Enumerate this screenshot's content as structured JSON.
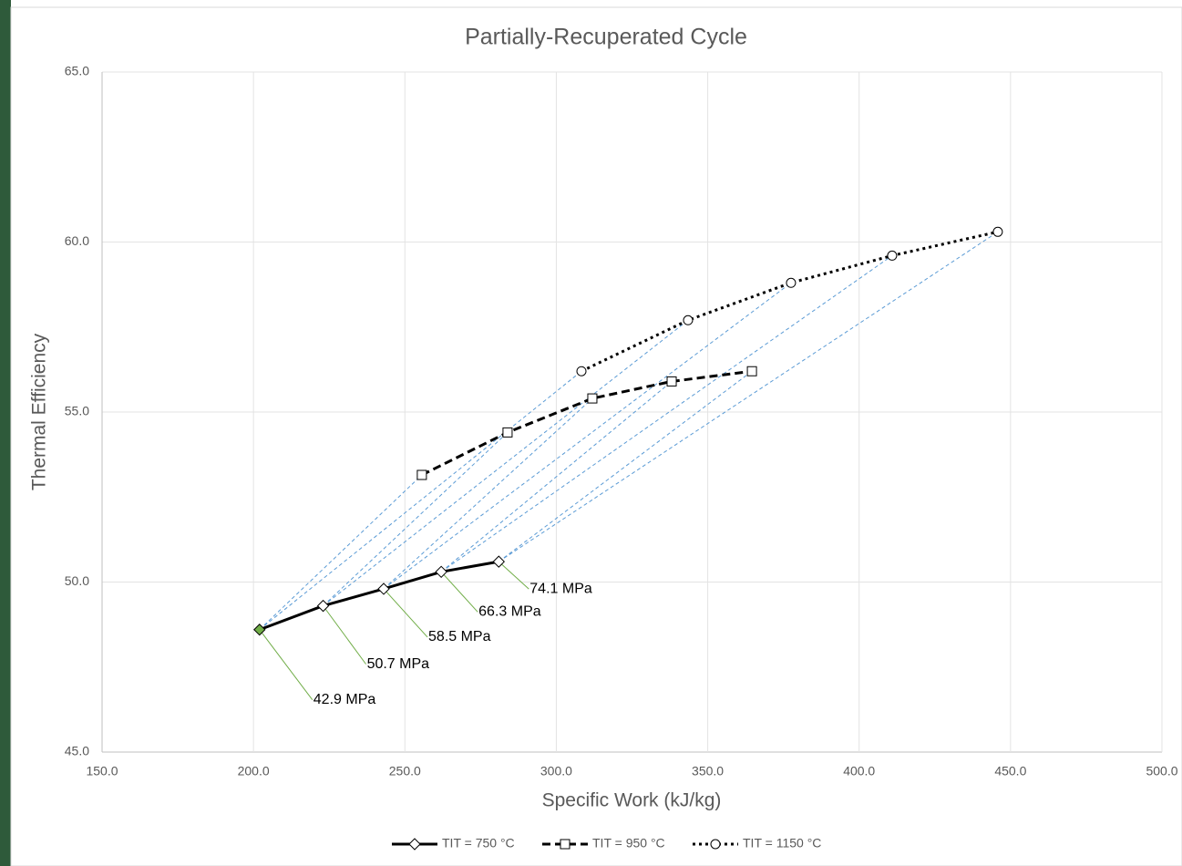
{
  "chart_data": {
    "type": "line",
    "title": "Partially-Recuperated Cycle",
    "x_label": "Specific Work (kJ/kg)",
    "y_label": "Thermal Efficiency",
    "xlim": [
      150,
      500
    ],
    "ylim": [
      45,
      65
    ],
    "xticks": [
      {
        "value": 150,
        "label": "150.0"
      },
      {
        "value": 200,
        "label": "200.0"
      },
      {
        "value": 250,
        "label": "250.0"
      },
      {
        "value": 300,
        "label": "300.0"
      },
      {
        "value": 350,
        "label": "350.0"
      },
      {
        "value": 400,
        "label": "400.0"
      },
      {
        "value": 450,
        "label": "450.0"
      },
      {
        "value": 500,
        "label": "500.0"
      }
    ],
    "yticks": [
      {
        "value": 45,
        "label": "45.0"
      },
      {
        "value": 50,
        "label": "50.0"
      },
      {
        "value": 55,
        "label": "55.0"
      },
      {
        "value": 60,
        "label": "60.0"
      },
      {
        "value": 65,
        "label": "65.0"
      }
    ],
    "grid": true,
    "legend": "bottom",
    "connector_color": "#5b9bd5",
    "series": [
      {
        "name": "TIT = 750 °C",
        "color": "#000000",
        "dash": "solid",
        "marker": "diamond",
        "x": [
          202,
          223,
          243,
          262,
          281
        ],
        "values": [
          48.6,
          49.3,
          49.8,
          50.3,
          50.6
        ],
        "highlight": {
          "index": 0,
          "color": "#70ad47"
        },
        "annotations": [
          "42.9 MPa",
          "50.7 MPa",
          "58.5 MPa",
          "66.3 MPa",
          "74.1 MPa"
        ]
      },
      {
        "name": "TIT = 950 °C",
        "color": "#000000",
        "dash": "dashed",
        "marker": "square",
        "x": [
          255.6,
          283.9,
          311.9,
          338.1,
          364.6
        ],
        "values": [
          53.15,
          54.4,
          55.4,
          55.9,
          56.2
        ]
      },
      {
        "name": "TIT = 1150 °C",
        "color": "#000000",
        "dash": "dotted",
        "marker": "circle",
        "x": [
          308.3,
          343.5,
          377.5,
          410.9,
          445.8
        ],
        "values": [
          56.2,
          57.7,
          58.8,
          59.6,
          60.3
        ]
      }
    ]
  }
}
